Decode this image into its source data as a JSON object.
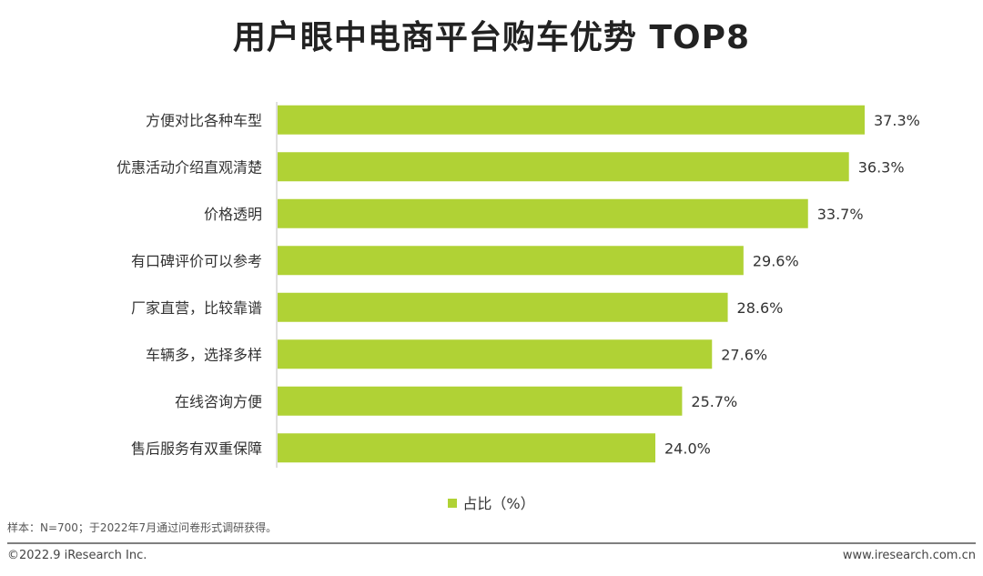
{
  "title": "用户眼中电商平台购车优势 TOP8",
  "legend_label": "占比（%）",
  "note": "样本：N=700；于2022年7月通过问卷形式调研获得。",
  "footer": {
    "copyright": "©2022.9 iResearch Inc.",
    "website": "www.iresearch.com.cn"
  },
  "colors": {
    "bar": "#b0d235",
    "axis": "#bfbfbf"
  },
  "chart_data": {
    "type": "bar",
    "orientation": "horizontal",
    "categories": [
      "方便对比各种车型",
      "优惠活动介绍直观清楚",
      "价格透明",
      "有口碑评价可以参考",
      "厂家直营，比较靠谱",
      "车辆多，选择多样",
      "在线咨询方便",
      "售后服务有双重保障"
    ],
    "series": [
      {
        "name": "占比（%）",
        "values": [
          37.3,
          36.3,
          33.7,
          29.6,
          28.6,
          27.6,
          25.7,
          24.0
        ]
      }
    ],
    "value_labels": [
      "37.3%",
      "36.3%",
      "33.7%",
      "29.6%",
      "28.6%",
      "27.6%",
      "25.7%",
      "24.0%"
    ],
    "xlim": [
      0,
      37.3
    ],
    "legend_position": "bottom",
    "grid": false
  }
}
